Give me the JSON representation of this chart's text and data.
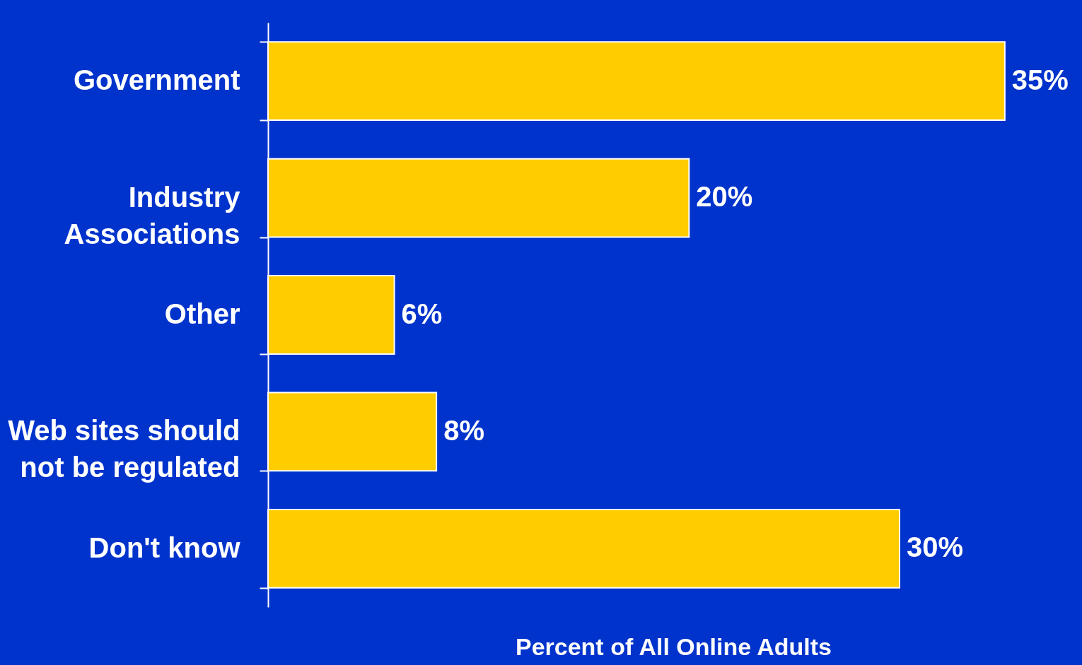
{
  "chart_data": {
    "type": "bar",
    "orientation": "horizontal",
    "categories": [
      "Government",
      "Industry\nAssociations",
      "Other",
      "Web sites should\nnot be regulated",
      "Don't know"
    ],
    "values": [
      35,
      20,
      6,
      8,
      30
    ],
    "value_labels": [
      "35%",
      "20%",
      "6%",
      "8%",
      "30%"
    ],
    "color": "#ffcc00",
    "xlabel": "Percent of All Online Adults"
  }
}
